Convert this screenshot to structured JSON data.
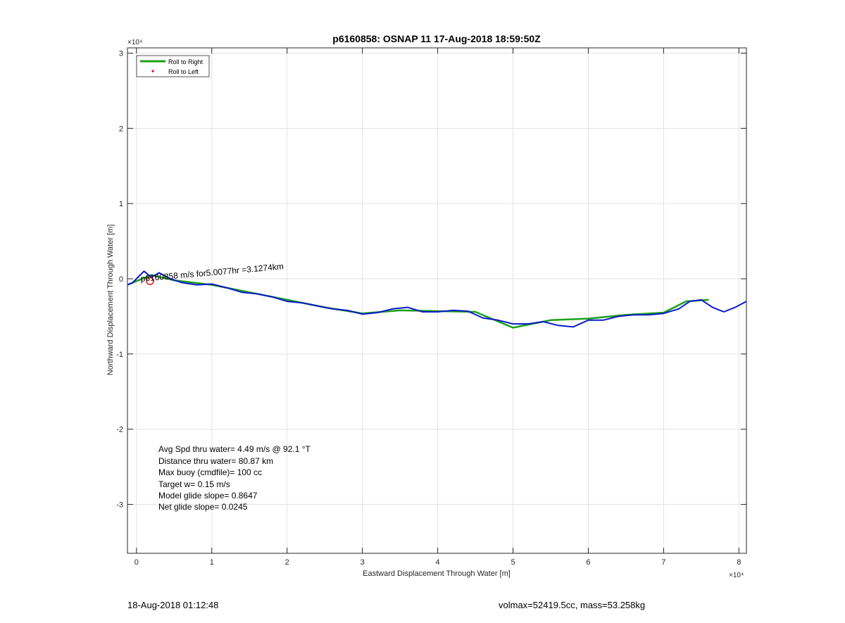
{
  "figure": {
    "footer_left": "18-Aug-2018 01:12:48",
    "footer_right": "volmax=52419.5cc, mass=53.258kg"
  },
  "chart_data": {
    "type": "line",
    "title": "p6160858: OSNAP 11 17-Aug-2018 18:59:50Z",
    "xlabel": "Eastward Displacement Through Water [m]",
    "ylabel": "Northward Displacement Through Water [m]",
    "x_exponent_label": "×10⁴",
    "y_exponent_label": "×10⁴",
    "xlim": [
      -0.12,
      8.1
    ],
    "ylim": [
      -3.65,
      3.07
    ],
    "xticks": [
      0,
      1,
      2,
      3,
      4,
      5,
      6,
      7,
      8
    ],
    "yticks": [
      -3,
      -2,
      -1,
      0,
      1,
      2,
      3
    ],
    "grid": true,
    "legend_position": "top-left",
    "legend": [
      {
        "label": "Roll to Right",
        "color": "#1aa01a",
        "style": "line"
      },
      {
        "label": "Roll to Left",
        "color": "#e01010",
        "style": "dot"
      }
    ],
    "annotation_overlap": "p6160858 m/s for5.0077hr =3.1274km",
    "stats_lines": [
      "Avg Spd thru water=  4.49 m/s @  92.1 °T",
      "Distance thru water= 80.87 km",
      "Max buoy (cmdfile)= 100 cc",
      "Target w= 0.15 m/s",
      "Model glide slope= 0.8647",
      "Net glide slope= 0.0245"
    ],
    "series": [
      {
        "name": "Roll to Right",
        "color": "#1aa01a",
        "x": [
          -0.12,
          0.2,
          0.5,
          1.0,
          1.5,
          2.0,
          2.5,
          3.0,
          3.5,
          4.0,
          4.5,
          5.0,
          5.5,
          6.0,
          6.5,
          7.0,
          7.3,
          7.6
        ],
        "y": [
          -0.08,
          0.05,
          -0.02,
          -0.08,
          -0.18,
          -0.28,
          -0.38,
          -0.46,
          -0.42,
          -0.43,
          -0.44,
          -0.65,
          -0.55,
          -0.53,
          -0.48,
          -0.45,
          -0.3,
          -0.28
        ]
      },
      {
        "name": "track",
        "color": "#0a1acc",
        "x": [
          -0.12,
          -0.05,
          0.0,
          0.1,
          0.2,
          0.3,
          0.45,
          0.6,
          0.8,
          1.0,
          1.2,
          1.4,
          1.6,
          1.8,
          2.0,
          2.2,
          2.4,
          2.6,
          2.8,
          3.0,
          3.2,
          3.4,
          3.6,
          3.8,
          4.0,
          4.2,
          4.4,
          4.6,
          4.8,
          5.0,
          5.2,
          5.4,
          5.6,
          5.8,
          6.0,
          6.2,
          6.4,
          6.6,
          6.8,
          7.0,
          7.2,
          7.35,
          7.5,
          7.65,
          7.8,
          7.95,
          8.1
        ],
        "y": [
          -0.08,
          -0.05,
          0.0,
          0.1,
          0.02,
          0.08,
          0.0,
          -0.05,
          -0.08,
          -0.07,
          -0.12,
          -0.18,
          -0.2,
          -0.24,
          -0.3,
          -0.32,
          -0.36,
          -0.4,
          -0.42,
          -0.47,
          -0.45,
          -0.4,
          -0.38,
          -0.44,
          -0.44,
          -0.42,
          -0.43,
          -0.52,
          -0.55,
          -0.6,
          -0.6,
          -0.57,
          -0.62,
          -0.64,
          -0.55,
          -0.55,
          -0.5,
          -0.48,
          -0.48,
          -0.46,
          -0.4,
          -0.3,
          -0.28,
          -0.38,
          -0.44,
          -0.38,
          -0.3
        ]
      }
    ],
    "roll_left_points": [
      {
        "x": 0.18,
        "y": -0.03
      }
    ]
  }
}
